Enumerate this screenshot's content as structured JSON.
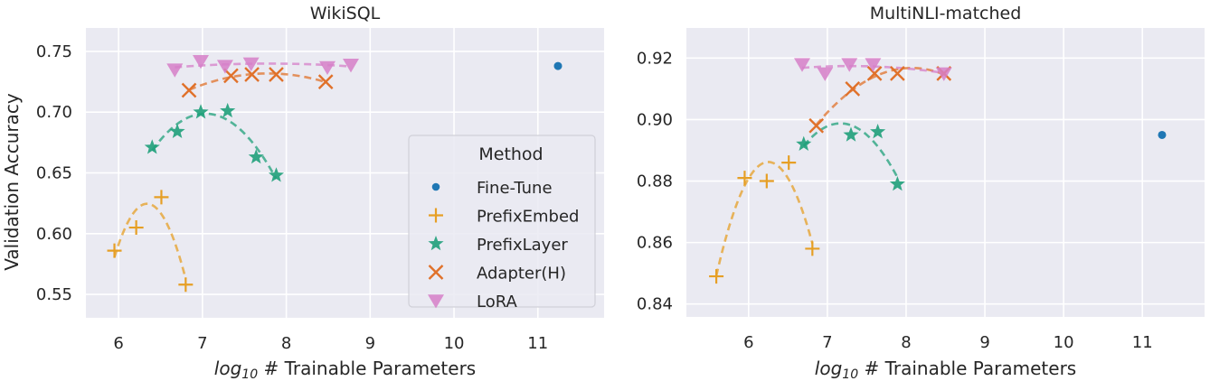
{
  "chart_data": [
    {
      "type": "scatter",
      "title": "WikiSQL",
      "xlabel_prefix": "log",
      "xlabel_sub": "10",
      "xlabel_rest": " # Trainable Parameters",
      "ylabel": "Validation Accuracy",
      "xlim": [
        5.61,
        11.79
      ],
      "ylim": [
        0.5307,
        0.7693
      ],
      "xticks": [
        6,
        7,
        8,
        9,
        10,
        11
      ],
      "xtick_labels": [
        "6",
        "7",
        "8",
        "9",
        "10",
        "11"
      ],
      "yticks": [
        0.55,
        0.6,
        0.65,
        0.7,
        0.75
      ],
      "ytick_labels": [
        "0.55",
        "0.60",
        "0.65",
        "0.70",
        "0.75"
      ],
      "grid": true,
      "legend": {
        "title": "Method",
        "placement": "center-right",
        "entries": [
          "Fine-Tune",
          "PrefixEmbed",
          "PrefixLayer",
          "Adapter(H)",
          "LoRA"
        ]
      },
      "series": [
        {
          "name": "Fine-Tune",
          "marker": "circle",
          "color": "#1f77b4",
          "fit": false,
          "x": [
            11.24
          ],
          "y": [
            0.738
          ]
        },
        {
          "name": "PrefixEmbed",
          "marker": "plus",
          "color": "#e69f25",
          "fit": true,
          "x": [
            5.95,
            6.21,
            6.51,
            6.8
          ],
          "y": [
            0.586,
            0.605,
            0.63,
            0.558
          ]
        },
        {
          "name": "PrefixLayer",
          "marker": "star",
          "color": "#1fa07a",
          "fit": true,
          "x": [
            6.4,
            6.7,
            6.98,
            7.3,
            7.64,
            7.88
          ],
          "y": [
            0.671,
            0.684,
            0.7,
            0.701,
            0.663,
            0.648
          ]
        },
        {
          "name": "Adapter(H)",
          "marker": "x",
          "color": "#e0712a",
          "fit": true,
          "x": [
            6.84,
            7.34,
            7.59,
            7.88,
            8.47
          ],
          "y": [
            0.718,
            0.73,
            0.731,
            0.731,
            0.725
          ]
        },
        {
          "name": "LoRA",
          "marker": "triangle-down",
          "color": "#d67fc8",
          "fit": true,
          "x": [
            6.67,
            6.98,
            7.27,
            7.58,
            8.49,
            8.77
          ],
          "y": [
            0.735,
            0.742,
            0.738,
            0.74,
            0.737,
            0.739
          ]
        }
      ]
    },
    {
      "type": "scatter",
      "title": "MultiNLI-matched",
      "xlabel_prefix": "log",
      "xlabel_sub": "10",
      "xlabel_rest": " # Trainable Parameters",
      "ylabel": "",
      "xlim": [
        5.21,
        11.79
      ],
      "ylim": [
        0.8358,
        0.9298
      ],
      "xticks": [
        6,
        7,
        8,
        9,
        10,
        11
      ],
      "xtick_labels": [
        "6",
        "7",
        "8",
        "9",
        "10",
        "11"
      ],
      "yticks": [
        0.84,
        0.86,
        0.88,
        0.9,
        0.92
      ],
      "ytick_labels": [
        "0.84",
        "0.86",
        "0.88",
        "0.90",
        "0.92"
      ],
      "grid": true,
      "series": [
        {
          "name": "Fine-Tune",
          "marker": "circle",
          "color": "#1f77b4",
          "fit": false,
          "x": [
            11.25
          ],
          "y": [
            0.895
          ]
        },
        {
          "name": "PrefixEmbed",
          "marker": "plus",
          "color": "#e69f25",
          "fit": true,
          "x": [
            5.59,
            5.95,
            6.23,
            6.51,
            6.81
          ],
          "y": [
            0.849,
            0.881,
            0.88,
            0.886,
            0.858
          ]
        },
        {
          "name": "PrefixLayer",
          "marker": "star",
          "color": "#1fa07a",
          "fit": true,
          "x": [
            6.7,
            7.3,
            7.64,
            7.89
          ],
          "y": [
            0.892,
            0.895,
            0.896,
            0.879
          ]
        },
        {
          "name": "Adapter(H)",
          "marker": "x",
          "color": "#e0712a",
          "fit": true,
          "x": [
            6.86,
            7.32,
            7.6,
            7.89,
            8.48
          ],
          "y": [
            0.898,
            0.91,
            0.915,
            0.915,
            0.915
          ]
        },
        {
          "name": "LoRA",
          "marker": "triangle-down",
          "color": "#d67fc8",
          "fit": true,
          "x": [
            6.68,
            6.97,
            7.28,
            7.58,
            8.48
          ],
          "y": [
            0.918,
            0.915,
            0.918,
            0.918,
            0.915
          ]
        }
      ]
    }
  ],
  "colors": {
    "plot_background": "#eaeaf2",
    "grid": "#ffffff",
    "text": "#262626"
  }
}
